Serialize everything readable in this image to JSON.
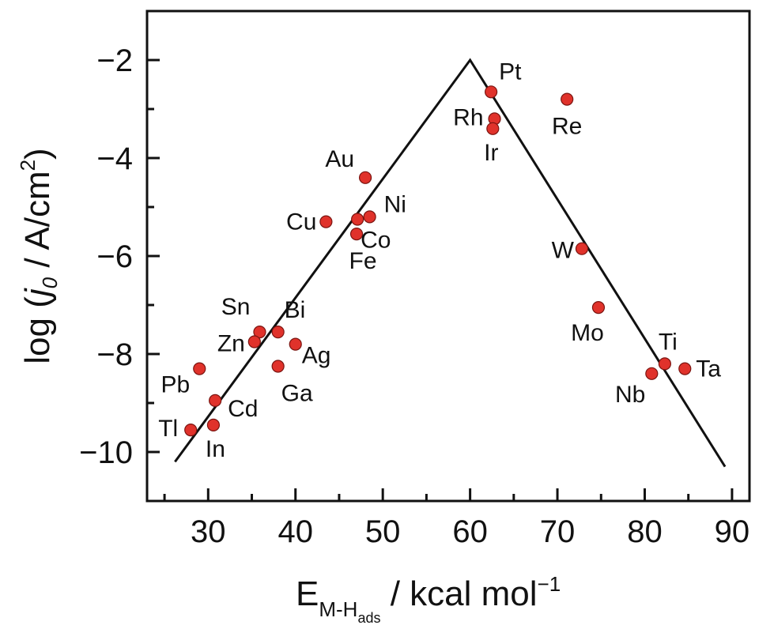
{
  "chart_data": {
    "type": "scatter",
    "xlim": [
      23,
      92
    ],
    "ylim": [
      -11,
      -1
    ],
    "x_ticks": [
      30,
      40,
      50,
      60,
      70,
      80,
      90
    ],
    "y_ticks": [
      -2,
      -4,
      -6,
      -8,
      -10
    ],
    "x_tick_labels": [
      "30",
      "40",
      "50",
      "60",
      "70",
      "80",
      "90"
    ],
    "y_tick_labels": [
      "−2",
      "−4",
      "−6",
      "−8",
      "−10"
    ],
    "xlabel": {
      "main": "E",
      "sub": "M-H",
      "subsub": "ads",
      "rest": " / kcal mol",
      "sup": "−1"
    },
    "ylabel": {
      "prefix": "log (",
      "j": "j",
      "jsub": "0",
      "rest": " / A/cm",
      "sup": "2",
      "close": ")"
    },
    "point_color": "#e0322b",
    "line_color": "#111111",
    "trend_line": [
      {
        "x": 26.2,
        "y": -10.2
      },
      {
        "x": 60.0,
        "y": -2.0
      },
      {
        "x": 89.2,
        "y": -10.3
      }
    ],
    "points": [
      {
        "label": "Pt",
        "x": 62.4,
        "y": -2.65
      },
      {
        "label": "Re",
        "x": 71.1,
        "y": -2.8
      },
      {
        "label": "Rh",
        "x": 62.8,
        "y": -3.2
      },
      {
        "label": "Ir",
        "x": 62.6,
        "y": -3.4
      },
      {
        "label": "Au",
        "x": 48.0,
        "y": -4.4
      },
      {
        "label": "Ni",
        "x": 48.5,
        "y": -5.2
      },
      {
        "label": "Co",
        "x": 47.1,
        "y": -5.25
      },
      {
        "label": "Cu",
        "x": 43.5,
        "y": -5.3
      },
      {
        "label": "Fe",
        "x": 47.0,
        "y": -5.55
      },
      {
        "label": "W",
        "x": 72.8,
        "y": -5.85
      },
      {
        "label": "Mo",
        "x": 74.7,
        "y": -7.05
      },
      {
        "label": "Sn",
        "x": 35.9,
        "y": -7.55
      },
      {
        "label": "Bi",
        "x": 38.0,
        "y": -7.55
      },
      {
        "label": "Zn",
        "x": 35.3,
        "y": -7.75
      },
      {
        "label": "Ag",
        "x": 40.0,
        "y": -7.8
      },
      {
        "label": "Ti",
        "x": 82.3,
        "y": -8.2
      },
      {
        "label": "Ga",
        "x": 38.0,
        "y": -8.25
      },
      {
        "label": "Pb",
        "x": 29.0,
        "y": -8.3
      },
      {
        "label": "Ta",
        "x": 84.6,
        "y": -8.3
      },
      {
        "label": "Nb",
        "x": 80.8,
        "y": -8.4
      },
      {
        "label": "Cd",
        "x": 30.8,
        "y": -8.95
      },
      {
        "label": "In",
        "x": 30.6,
        "y": -9.45
      },
      {
        "label": "Tl",
        "x": 28.0,
        "y": -9.55
      }
    ]
  }
}
